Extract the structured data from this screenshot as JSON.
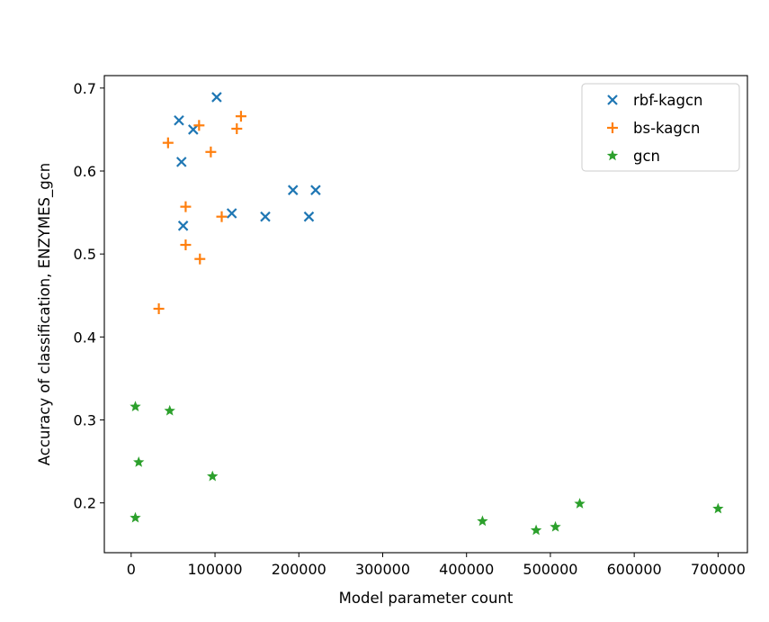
{
  "chart_data": {
    "type": "scatter",
    "title": "",
    "xlabel": "Model parameter count",
    "ylabel": "Accuracy of classification, ENZYMES_gcn",
    "xlim": [
      -32000,
      735000
    ],
    "ylim": [
      0.14,
      0.715
    ],
    "xticks": [
      0,
      100000,
      200000,
      300000,
      400000,
      500000,
      600000,
      700000
    ],
    "xtick_labels": [
      "0",
      "100000",
      "200000",
      "300000",
      "400000",
      "500000",
      "600000",
      "700000"
    ],
    "yticks": [
      0.2,
      0.3,
      0.4,
      0.5,
      0.6,
      0.7
    ],
    "ytick_labels": [
      "0.2",
      "0.3",
      "0.4",
      "0.5",
      "0.6",
      "0.7"
    ],
    "grid": false,
    "legend_position": "top-right",
    "series": [
      {
        "name": "rbf-kagcn",
        "color": "#1f77b4",
        "marker": "x",
        "x": [
          102000,
          57000,
          74000,
          60000,
          62000,
          120000,
          160000,
          193000,
          212000,
          220000
        ],
        "y": [
          0.689,
          0.661,
          0.65,
          0.611,
          0.534,
          0.549,
          0.545,
          0.577,
          0.545,
          0.577
        ]
      },
      {
        "name": "bs-kagcn",
        "color": "#ff7f0e",
        "marker": "plus",
        "x": [
          131000,
          81000,
          126000,
          44000,
          95000,
          65000,
          108000,
          65000,
          82000,
          33000
        ],
        "y": [
          0.666,
          0.655,
          0.651,
          0.634,
          0.623,
          0.557,
          0.545,
          0.511,
          0.494,
          0.434
        ]
      },
      {
        "name": "gcn",
        "color": "#2ca02c",
        "marker": "star",
        "x": [
          5000,
          46000,
          9000,
          97000,
          5000,
          419000,
          483000,
          506000,
          535000,
          700000
        ],
        "y": [
          0.316,
          0.311,
          0.249,
          0.232,
          0.182,
          0.178,
          0.167,
          0.171,
          0.199,
          0.193
        ]
      }
    ]
  }
}
